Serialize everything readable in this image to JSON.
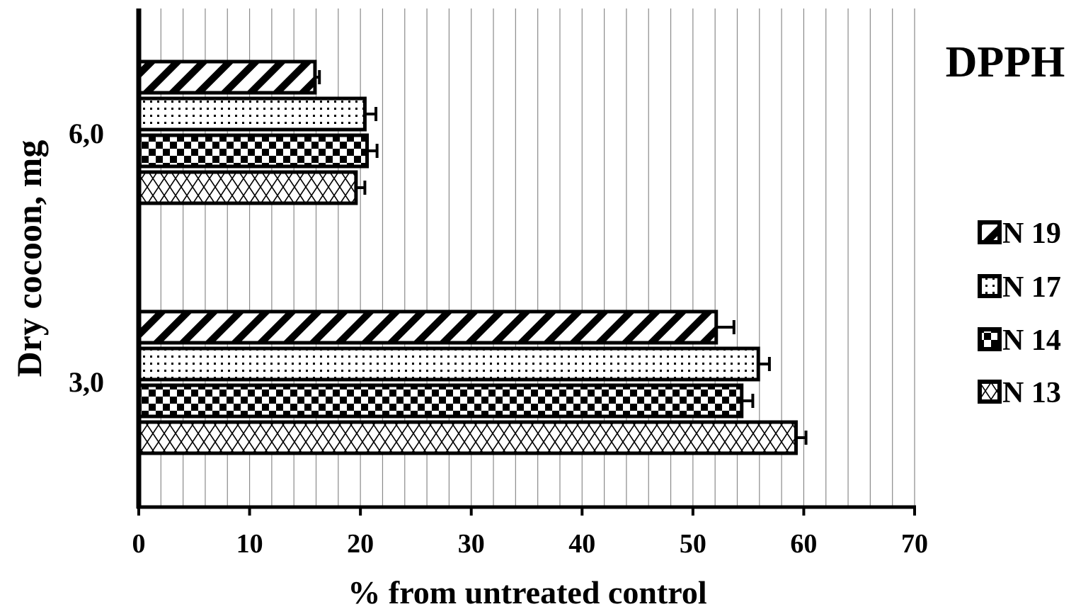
{
  "chart_data": {
    "type": "bar",
    "orientation": "horizontal",
    "title": "DPPH",
    "xlabel": "% from untreated control",
    "ylabel": "Dry cocoon, mg",
    "xlim": [
      0,
      70
    ],
    "x_ticks": [
      0,
      10,
      20,
      30,
      40,
      50,
      60,
      70
    ],
    "x_tick_labels": [
      "0",
      "10",
      "20",
      "30",
      "40",
      "50",
      "60",
      "70"
    ],
    "minor_grid_step": 2,
    "grid": true,
    "legend_position": "right",
    "categories": [
      "3,0",
      "6,0"
    ],
    "series": [
      {
        "name": "N 13",
        "pattern": "diamond-hatch",
        "values": [
          59.3,
          19.6
        ],
        "errors": [
          0.9,
          0.8
        ]
      },
      {
        "name": "N 14",
        "pattern": "checkerboard",
        "values": [
          54.4,
          20.6
        ],
        "errors": [
          1.0,
          0.9
        ]
      },
      {
        "name": "N 17",
        "pattern": "dots",
        "values": [
          55.9,
          20.4
        ],
        "errors": [
          1.0,
          1.0
        ]
      },
      {
        "name": "N 19",
        "pattern": "diagonal-stripes",
        "values": [
          52.1,
          15.9
        ],
        "errors": [
          1.6,
          0.4
        ]
      }
    ],
    "legend_order": [
      "N 19",
      "N 17",
      "N 14",
      "N 13"
    ]
  }
}
